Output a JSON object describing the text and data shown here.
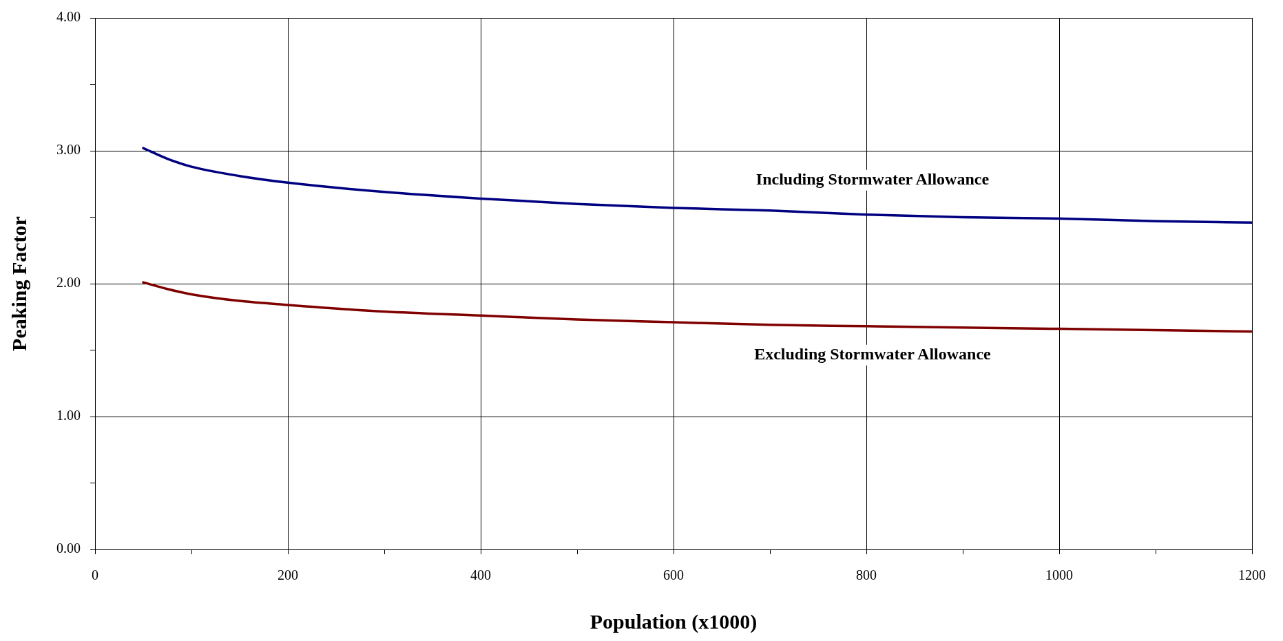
{
  "chart_data": {
    "type": "line",
    "xlabel": "Population (x1000)",
    "ylabel": "Peaking Factor",
    "xlim": [
      0,
      1200
    ],
    "xticks": [
      0,
      {
        "value": 100,
        "label": null
      },
      200,
      {
        "value": 300,
        "label": null
      },
      400,
      {
        "value": 500,
        "label": null
      },
      600,
      {
        "value": 700,
        "label": null
      },
      800,
      {
        "value": 900,
        "label": null
      },
      1000,
      {
        "value": 1100,
        "label": null
      },
      1200
    ],
    "ylim": [
      0,
      4
    ],
    "yticks": [
      {
        "value": 0,
        "label": "0.00"
      },
      {
        "value": 0.5,
        "label": null
      },
      {
        "value": 1,
        "label": "1.00"
      },
      {
        "value": 1.5,
        "label": null
      },
      {
        "value": 2,
        "label": "2.00"
      },
      {
        "value": 2.5,
        "label": null
      },
      {
        "value": 3,
        "label": "3.00"
      },
      {
        "value": 3.5,
        "label": null
      },
      {
        "value": 4,
        "label": "4.00"
      }
    ],
    "grid": true,
    "legend": false,
    "marker": "none",
    "line_style": "solid",
    "x": [
      50,
      75,
      100,
      150,
      200,
      300,
      400,
      500,
      600,
      700,
      800,
      900,
      1000,
      1100,
      1200
    ],
    "series": [
      {
        "name": "Including Stormwater Allowance",
        "color": "#000080",
        "values": [
          3.02,
          2.94,
          2.88,
          2.81,
          2.76,
          2.69,
          2.64,
          2.6,
          2.57,
          2.55,
          2.52,
          2.5,
          2.49,
          2.47,
          2.46
        ]
      },
      {
        "name": "Excluding Stormwater Allowance",
        "color": "#800000",
        "values": [
          2.01,
          1.96,
          1.92,
          1.87,
          1.84,
          1.79,
          1.76,
          1.73,
          1.71,
          1.69,
          1.68,
          1.67,
          1.66,
          1.65,
          1.64
        ]
      }
    ]
  }
}
